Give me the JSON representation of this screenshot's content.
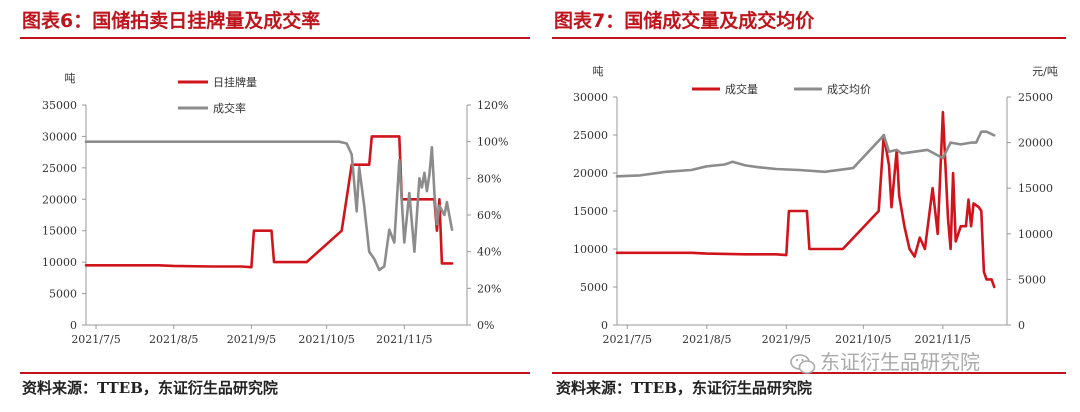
{
  "figures": [
    {
      "title": "图表6：国储拍卖日挂牌量及成交率",
      "source": "资料来源：TTEB，东证衍生品研究院"
    },
    {
      "title": "图表7：国储成交量及成交均价",
      "source": "资料来源：TTEB，东证衍生品研究院"
    }
  ],
  "watermark": {
    "text": "东证衍生品研究院",
    "icon": "wechat-icon"
  },
  "colors": {
    "red": "#d0141c",
    "gray": "#8c8c8c",
    "title_red": "#c0141c"
  },
  "chart_data": [
    {
      "type": "line",
      "left_unit": "吨",
      "right_unit": "",
      "xlim": [
        "2021-07-01",
        "2021-11-30"
      ],
      "x_ticks": [
        "2021-07-05",
        "2021-08-05",
        "2021-09-05",
        "2021-10-05",
        "2021-11-05"
      ],
      "x_tick_labels": [
        "2021/7/5",
        "2021/8/5",
        "2021/9/5",
        "2021/10/5",
        "2021/11/5"
      ],
      "y_left": {
        "lim": [
          0,
          35000
        ],
        "ticks": [
          0,
          5000,
          10000,
          15000,
          20000,
          25000,
          30000,
          35000
        ],
        "tick_labels": [
          "0",
          "5000",
          "10000",
          "15000",
          "20000",
          "25000",
          "30000",
          "35000"
        ]
      },
      "y_right": {
        "lim": [
          0,
          1.2
        ],
        "ticks": [
          0,
          0.2,
          0.4,
          0.6,
          0.8,
          1.0,
          1.2
        ],
        "tick_labels": [
          "0%",
          "20%",
          "40%",
          "60%",
          "80%",
          "100%",
          "120%"
        ]
      },
      "legend_position": "top-center",
      "grid": false,
      "series": [
        {
          "name": "日挂牌量",
          "axis": "left",
          "color": "#d0141c",
          "points": [
            [
              "2021-07-01",
              9500
            ],
            [
              "2021-07-15",
              9500
            ],
            [
              "2021-07-30",
              9500
            ],
            [
              "2021-08-05",
              9400
            ],
            [
              "2021-08-20",
              9300
            ],
            [
              "2021-09-01",
              9300
            ],
            [
              "2021-09-05",
              9200
            ],
            [
              "2021-09-06",
              15000
            ],
            [
              "2021-09-10",
              15000
            ],
            [
              "2021-09-13",
              15000
            ],
            [
              "2021-09-14",
              10000
            ],
            [
              "2021-09-20",
              10000
            ],
            [
              "2021-09-27",
              10000
            ],
            [
              "2021-10-11",
              15000
            ],
            [
              "2021-10-15",
              25500
            ],
            [
              "2021-10-22",
              25500
            ],
            [
              "2021-10-23",
              30000
            ],
            [
              "2021-11-01",
              30000
            ],
            [
              "2021-11-03",
              30000
            ],
            [
              "2021-11-04",
              20000
            ],
            [
              "2021-11-12",
              20000
            ],
            [
              "2021-11-17",
              20000
            ],
            [
              "2021-11-18",
              15000
            ],
            [
              "2021-11-19",
              20000
            ],
            [
              "2021-11-20",
              9800
            ],
            [
              "2021-11-24",
              9800
            ]
          ]
        },
        {
          "name": "成交率",
          "axis": "right",
          "color": "#8c8c8c",
          "points": [
            [
              "2021-07-01",
              1.0
            ],
            [
              "2021-07-15",
              1.0
            ],
            [
              "2021-08-01",
              1.0
            ],
            [
              "2021-09-01",
              1.0
            ],
            [
              "2021-10-01",
              1.0
            ],
            [
              "2021-10-10",
              1.0
            ],
            [
              "2021-10-13",
              0.99
            ],
            [
              "2021-10-15",
              0.93
            ],
            [
              "2021-10-17",
              0.62
            ],
            [
              "2021-10-18",
              0.86
            ],
            [
              "2021-10-20",
              0.65
            ],
            [
              "2021-10-22",
              0.4
            ],
            [
              "2021-10-24",
              0.36
            ],
            [
              "2021-10-26",
              0.3
            ],
            [
              "2021-10-28",
              0.32
            ],
            [
              "2021-10-30",
              0.52
            ],
            [
              "2021-11-01",
              0.45
            ],
            [
              "2021-11-03",
              0.9
            ],
            [
              "2021-11-05",
              0.45
            ],
            [
              "2021-11-07",
              0.72
            ],
            [
              "2021-11-09",
              0.4
            ],
            [
              "2021-11-11",
              0.8
            ],
            [
              "2021-11-12",
              0.75
            ],
            [
              "2021-11-13",
              0.83
            ],
            [
              "2021-11-14",
              0.73
            ],
            [
              "2021-11-15",
              0.82
            ],
            [
              "2021-11-16",
              0.97
            ],
            [
              "2021-11-17",
              0.72
            ],
            [
              "2021-11-18",
              0.55
            ],
            [
              "2021-11-19",
              0.65
            ],
            [
              "2021-11-21",
              0.6
            ],
            [
              "2021-11-22",
              0.67
            ],
            [
              "2021-11-24",
              0.52
            ]
          ]
        }
      ]
    },
    {
      "type": "line",
      "left_unit": "吨",
      "right_unit": "元/吨",
      "xlim": [
        "2021-07-01",
        "2021-11-30"
      ],
      "x_ticks": [
        "2021-07-05",
        "2021-08-05",
        "2021-09-05",
        "2021-10-05",
        "2021-11-05"
      ],
      "x_tick_labels": [
        "2021/7/5",
        "2021/8/5",
        "2021/9/5",
        "2021/10/5",
        "2021/11/5"
      ],
      "y_left": {
        "lim": [
          0,
          30000
        ],
        "ticks": [
          0,
          5000,
          10000,
          15000,
          20000,
          25000,
          30000
        ],
        "tick_labels": [
          "0",
          "5000",
          "10000",
          "15000",
          "20000",
          "25000",
          "30000"
        ]
      },
      "y_right": {
        "lim": [
          0,
          25000
        ],
        "ticks": [
          0,
          5000,
          10000,
          15000,
          20000,
          25000
        ],
        "tick_labels": [
          "0",
          "5000",
          "10000",
          "15000",
          "20000",
          "25000"
        ]
      },
      "legend_position": "top-center",
      "grid": false,
      "series": [
        {
          "name": "成交量",
          "axis": "left",
          "color": "#d0141c",
          "points": [
            [
              "2021-07-01",
              9500
            ],
            [
              "2021-07-15",
              9500
            ],
            [
              "2021-07-30",
              9500
            ],
            [
              "2021-08-05",
              9400
            ],
            [
              "2021-08-20",
              9300
            ],
            [
              "2021-09-01",
              9300
            ],
            [
              "2021-09-05",
              9200
            ],
            [
              "2021-09-06",
              15000
            ],
            [
              "2021-09-10",
              15000
            ],
            [
              "2021-09-13",
              15000
            ],
            [
              "2021-09-14",
              10000
            ],
            [
              "2021-09-20",
              10000
            ],
            [
              "2021-09-27",
              10000
            ],
            [
              "2021-10-11",
              15000
            ],
            [
              "2021-10-13",
              25000
            ],
            [
              "2021-10-15",
              21000
            ],
            [
              "2021-10-16",
              15500
            ],
            [
              "2021-10-18",
              23000
            ],
            [
              "2021-10-19",
              17000
            ],
            [
              "2021-10-21",
              13000
            ],
            [
              "2021-10-23",
              10000
            ],
            [
              "2021-10-25",
              9000
            ],
            [
              "2021-10-27",
              11500
            ],
            [
              "2021-10-29",
              10000
            ],
            [
              "2021-11-01",
              18000
            ],
            [
              "2021-11-03",
              12000
            ],
            [
              "2021-11-05",
              28000
            ],
            [
              "2021-11-07",
              14000
            ],
            [
              "2021-11-08",
              10000
            ],
            [
              "2021-11-09",
              20000
            ],
            [
              "2021-11-10",
              11000
            ],
            [
              "2021-11-12",
              13000
            ],
            [
              "2021-11-14",
              13000
            ],
            [
              "2021-11-15",
              16500
            ],
            [
              "2021-11-16",
              13000
            ],
            [
              "2021-11-17",
              16000
            ],
            [
              "2021-11-19",
              15500
            ],
            [
              "2021-11-20",
              15000
            ],
            [
              "2021-11-21",
              7000
            ],
            [
              "2021-11-22",
              6000
            ],
            [
              "2021-11-24",
              6000
            ],
            [
              "2021-11-25",
              5000
            ]
          ]
        },
        {
          "name": "成交均价",
          "axis": "right",
          "color": "#8c8c8c",
          "points": [
            [
              "2021-07-01",
              16300
            ],
            [
              "2021-07-10",
              16400
            ],
            [
              "2021-07-20",
              16800
            ],
            [
              "2021-07-30",
              17000
            ],
            [
              "2021-08-05",
              17400
            ],
            [
              "2021-08-12",
              17600
            ],
            [
              "2021-08-15",
              17900
            ],
            [
              "2021-08-20",
              17500
            ],
            [
              "2021-08-25",
              17300
            ],
            [
              "2021-09-01",
              17100
            ],
            [
              "2021-09-10",
              17000
            ],
            [
              "2021-09-20",
              16800
            ],
            [
              "2021-10-01",
              17200
            ],
            [
              "2021-10-13",
              20800
            ],
            [
              "2021-10-15",
              19000
            ],
            [
              "2021-10-18",
              19200
            ],
            [
              "2021-10-20",
              18800
            ],
            [
              "2021-10-25",
              19000
            ],
            [
              "2021-10-30",
              19200
            ],
            [
              "2021-11-03",
              18600
            ],
            [
              "2021-11-05",
              18300
            ],
            [
              "2021-11-08",
              20000
            ],
            [
              "2021-11-12",
              19800
            ],
            [
              "2021-11-16",
              20000
            ],
            [
              "2021-11-18",
              20000
            ],
            [
              "2021-11-20",
              21200
            ],
            [
              "2021-11-22",
              21200
            ],
            [
              "2021-11-25",
              20800
            ]
          ]
        }
      ]
    }
  ]
}
